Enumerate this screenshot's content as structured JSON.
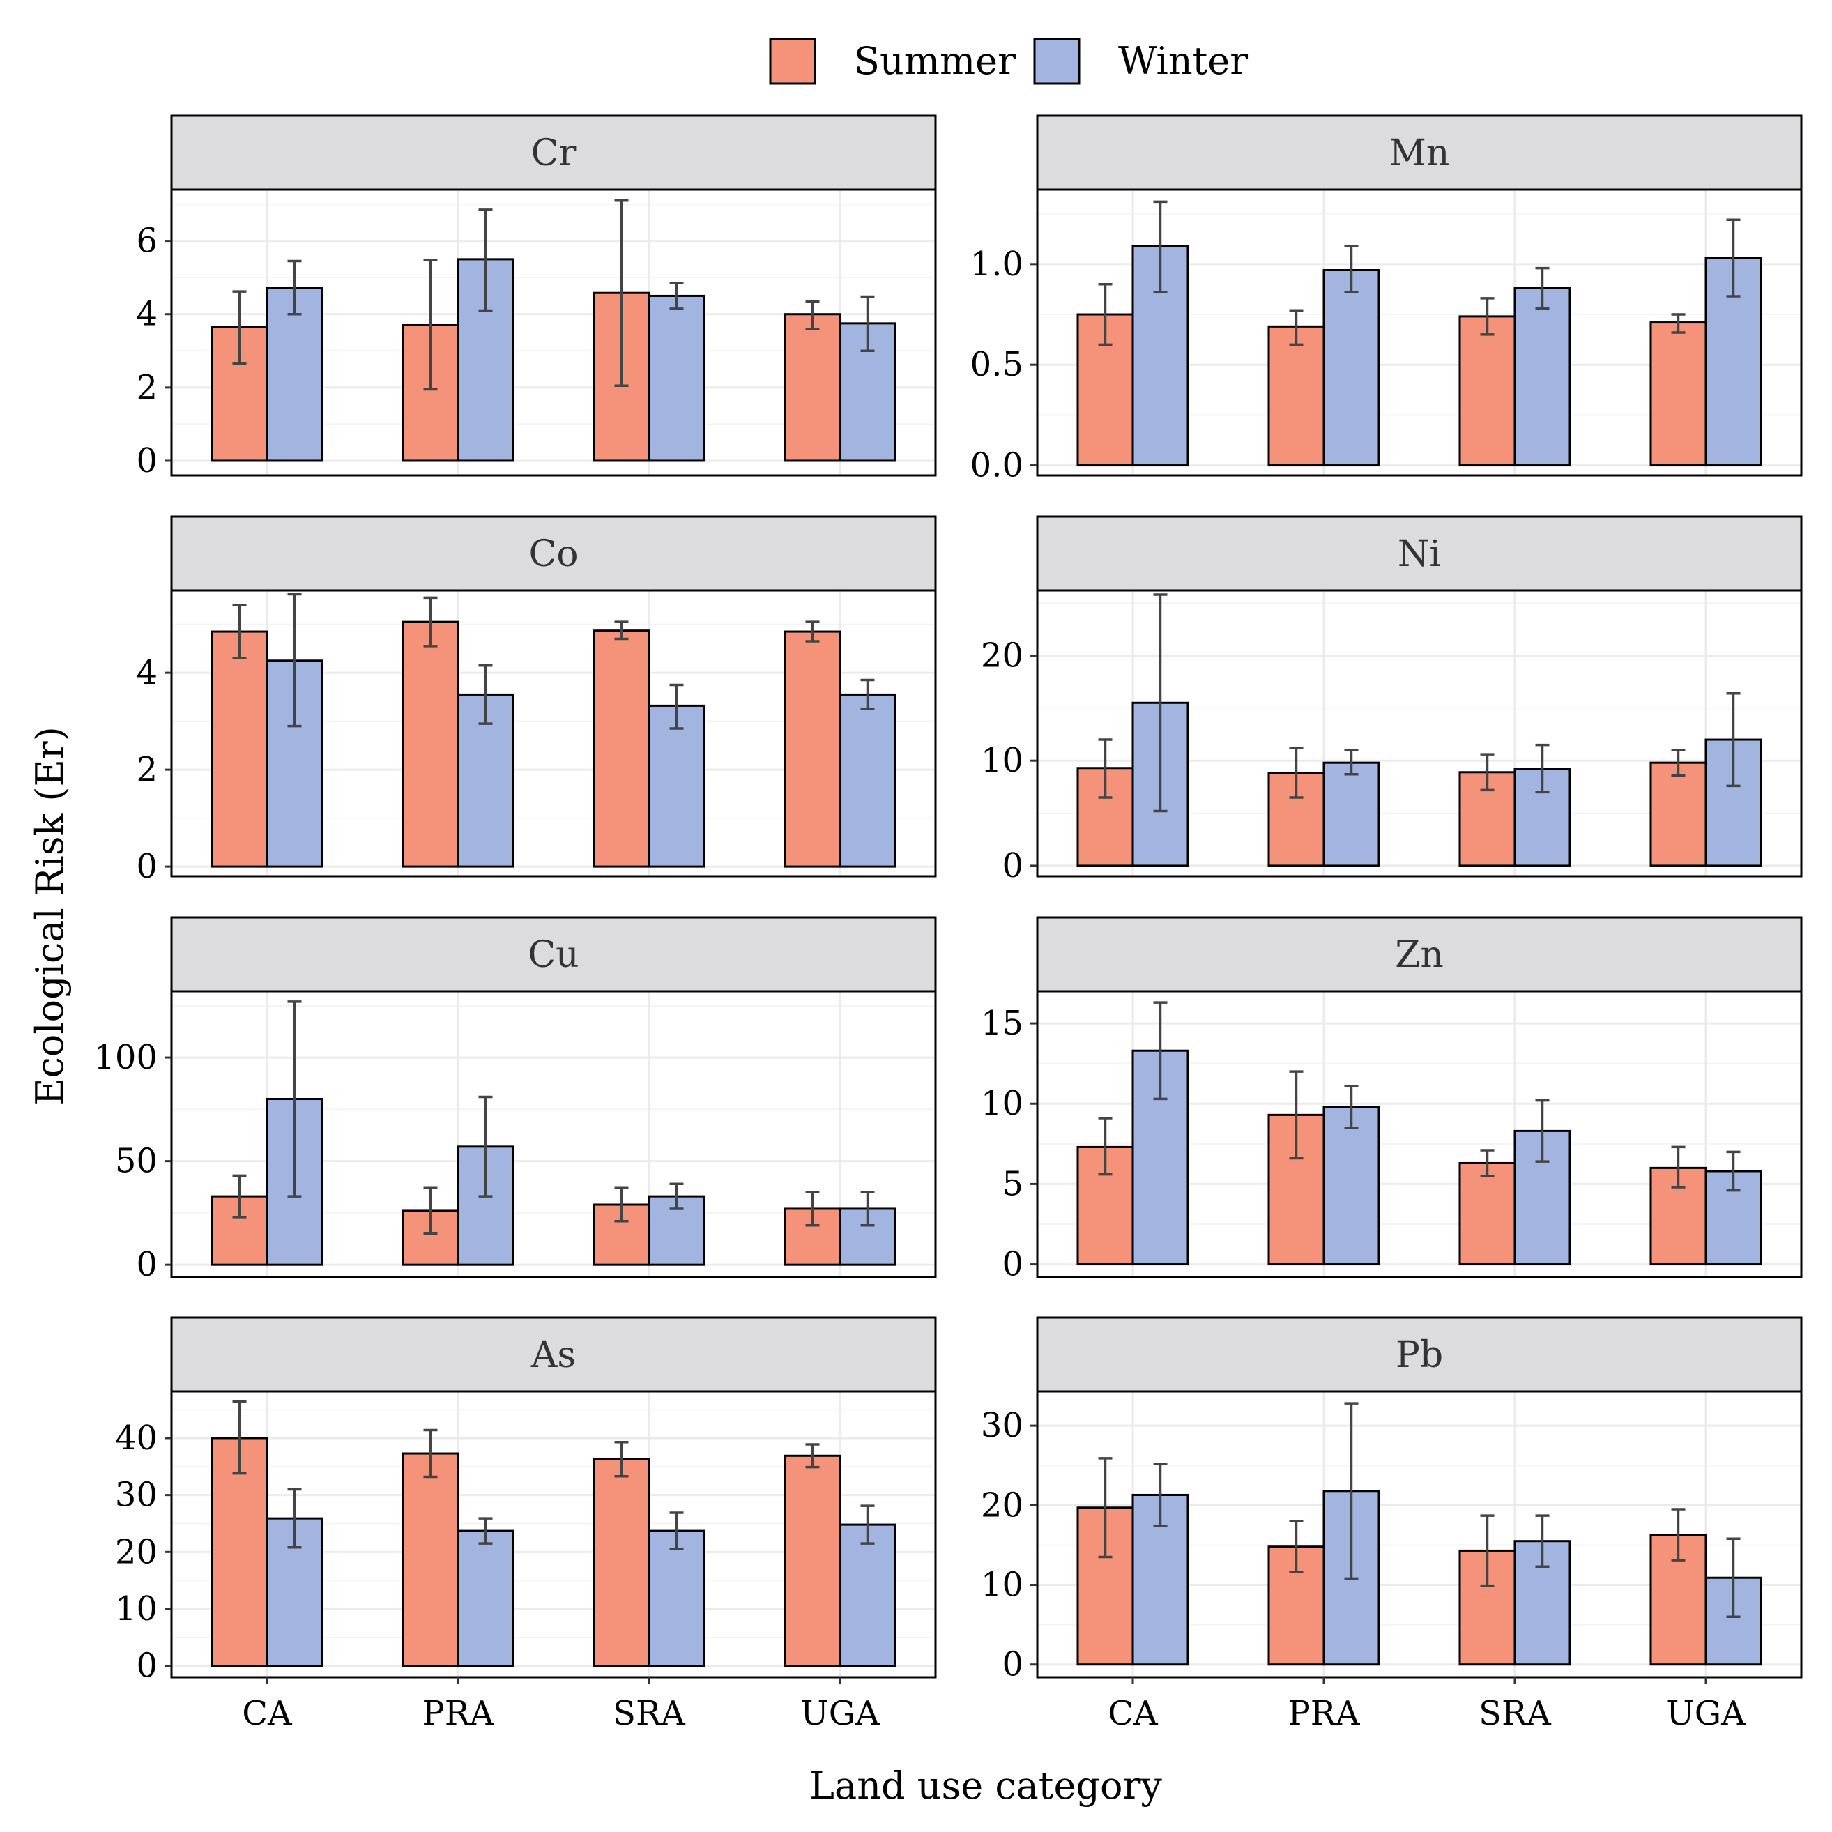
{
  "chart_data": {
    "type": "bar",
    "xlabel": "Land use category",
    "ylabel": "Ecological Risk (Er)",
    "categories": [
      "CA",
      "PRA",
      "SRA",
      "UGA"
    ],
    "legend": {
      "position": "top",
      "entries": [
        {
          "name": "Summer",
          "color": "#F4937A"
        },
        {
          "name": "Winter",
          "color": "#A2B5E0"
        }
      ]
    },
    "grid": true,
    "panels": [
      {
        "title": "Cr",
        "ylim": [
          -0.4,
          7.4
        ],
        "ticks": [
          0,
          2,
          4,
          6
        ],
        "tick_labels": [
          "0",
          "2",
          "4",
          "6"
        ],
        "series": [
          {
            "name": "Summer",
            "values": [
              3.65,
              3.7,
              4.58,
              4.0
            ],
            "err_low": [
              2.65,
              1.95,
              2.05,
              3.6
            ],
            "err_high": [
              4.62,
              5.48,
              7.1,
              4.35
            ]
          },
          {
            "name": "Winter",
            "values": [
              4.72,
              5.5,
              4.5,
              3.75
            ],
            "err_low": [
              4.0,
              4.1,
              4.15,
              3.0
            ],
            "err_high": [
              5.45,
              6.85,
              4.85,
              4.48
            ]
          }
        ]
      },
      {
        "title": "Mn",
        "ylim": [
          -0.05,
          1.37
        ],
        "ticks": [
          0,
          0.5,
          1.0
        ],
        "tick_labels": [
          "0.0",
          "0.5",
          "1.0"
        ],
        "series": [
          {
            "name": "Summer",
            "values": [
              0.75,
              0.69,
              0.74,
              0.71
            ],
            "err_low": [
              0.6,
              0.6,
              0.65,
              0.66
            ],
            "err_high": [
              0.9,
              0.77,
              0.83,
              0.75
            ]
          },
          {
            "name": "Winter",
            "values": [
              1.09,
              0.97,
              0.88,
              1.03
            ],
            "err_low": [
              0.86,
              0.86,
              0.78,
              0.84
            ],
            "err_high": [
              1.31,
              1.09,
              0.98,
              1.22
            ]
          }
        ]
      },
      {
        "title": "Co",
        "ylim": [
          -0.2,
          5.7
        ],
        "ticks": [
          0,
          2,
          4
        ],
        "tick_labels": [
          "0",
          "2",
          "4"
        ],
        "series": [
          {
            "name": "Summer",
            "values": [
              4.85,
              5.05,
              4.87,
              4.85
            ],
            "err_low": [
              4.3,
              4.55,
              4.7,
              4.65
            ],
            "err_high": [
              5.4,
              5.55,
              5.05,
              5.05
            ]
          },
          {
            "name": "Winter",
            "values": [
              4.25,
              3.55,
              3.32,
              3.55
            ],
            "err_low": [
              2.9,
              2.95,
              2.85,
              3.25
            ],
            "err_high": [
              5.62,
              4.15,
              3.75,
              3.85
            ]
          }
        ]
      },
      {
        "title": "Ni",
        "ylim": [
          -1.0,
          26.2
        ],
        "ticks": [
          0,
          10,
          20
        ],
        "tick_labels": [
          "0",
          "10",
          "20"
        ],
        "series": [
          {
            "name": "Summer",
            "values": [
              9.3,
              8.8,
              8.9,
              9.8
            ],
            "err_low": [
              6.5,
              6.5,
              7.2,
              8.6
            ],
            "err_high": [
              12.0,
              11.2,
              10.6,
              11.0
            ]
          },
          {
            "name": "Winter",
            "values": [
              15.5,
              9.8,
              9.2,
              12.0
            ],
            "err_low": [
              5.2,
              8.7,
              7.0,
              7.6
            ],
            "err_high": [
              25.8,
              11.0,
              11.5,
              16.4
            ]
          }
        ]
      },
      {
        "title": "Cu",
        "ylim": [
          -6,
          132
        ],
        "ticks": [
          0,
          50,
          100
        ],
        "tick_labels": [
          "0",
          "50",
          "100"
        ],
        "series": [
          {
            "name": "Summer",
            "values": [
              33,
              26,
              29,
              27
            ],
            "err_low": [
              23,
              15,
              21,
              19
            ],
            "err_high": [
              43,
              37,
              37,
              35
            ]
          },
          {
            "name": "Winter",
            "values": [
              80,
              57,
              33,
              27
            ],
            "err_low": [
              33,
              33,
              27,
              19
            ],
            "err_high": [
              127,
              81,
              39,
              35
            ]
          }
        ]
      },
      {
        "title": "Zn",
        "ylim": [
          -0.8,
          17.0
        ],
        "ticks": [
          0,
          5,
          10,
          15
        ],
        "tick_labels": [
          "0",
          "5",
          "10",
          "15"
        ],
        "series": [
          {
            "name": "Summer",
            "values": [
              7.3,
              9.3,
              6.3,
              6.0
            ],
            "err_low": [
              5.6,
              6.6,
              5.5,
              4.8
            ],
            "err_high": [
              9.1,
              12.0,
              7.1,
              7.3
            ]
          },
          {
            "name": "Winter",
            "values": [
              13.3,
              9.8,
              8.3,
              5.8
            ],
            "err_low": [
              10.3,
              8.5,
              6.4,
              4.6
            ],
            "err_high": [
              16.3,
              11.1,
              10.2,
              7.0
            ]
          }
        ]
      },
      {
        "title": "As",
        "ylim": [
          -2.0,
          48.2
        ],
        "ticks": [
          0,
          10,
          20,
          30,
          40
        ],
        "tick_labels": [
          "0",
          "10",
          "20",
          "30",
          "40"
        ],
        "series": [
          {
            "name": "Summer",
            "values": [
              40,
              37.3,
              36.3,
              36.9
            ],
            "err_low": [
              33.8,
              33.2,
              33.3,
              34.9
            ],
            "err_high": [
              46.4,
              41.4,
              39.3,
              38.9
            ]
          },
          {
            "name": "Winter",
            "values": [
              25.9,
              23.7,
              23.7,
              24.8
            ],
            "err_low": [
              20.8,
              21.5,
              20.5,
              21.5
            ],
            "err_high": [
              31.0,
              25.9,
              26.9,
              28.1
            ]
          }
        ]
      },
      {
        "title": "Pb",
        "ylim": [
          -1.6,
          34.3
        ],
        "ticks": [
          0,
          10,
          20,
          30
        ],
        "tick_labels": [
          "0",
          "10",
          "20",
          "30"
        ],
        "series": [
          {
            "name": "Summer",
            "values": [
              19.7,
              14.8,
              14.3,
              16.3
            ],
            "err_low": [
              13.5,
              11.6,
              9.9,
              13.1
            ],
            "err_high": [
              25.9,
              18.0,
              18.7,
              19.5
            ]
          },
          {
            "name": "Winter",
            "values": [
              21.3,
              21.8,
              15.5,
              10.9
            ],
            "err_low": [
              17.4,
              10.8,
              12.3,
              6.0
            ],
            "err_high": [
              25.2,
              32.8,
              18.7,
              15.8
            ]
          }
        ]
      }
    ]
  }
}
